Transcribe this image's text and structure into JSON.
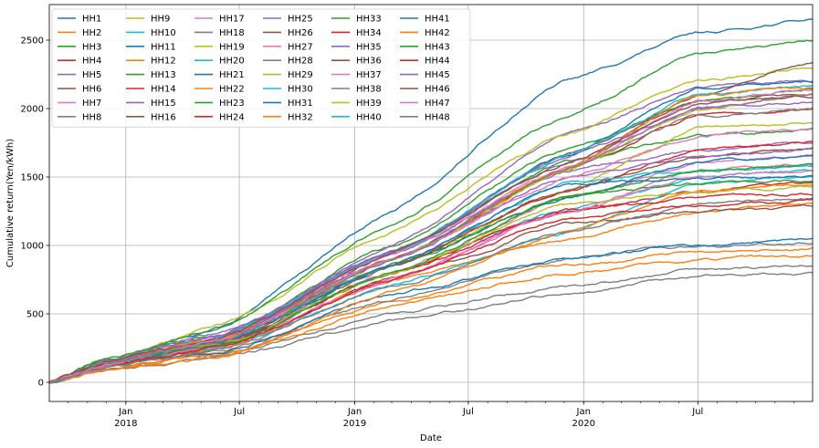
{
  "chart_data": {
    "type": "line",
    "title": "",
    "xlabel": "Date",
    "ylabel": "Cumulative return(Yen/kWh)",
    "x_range": [
      "2017-09-01",
      "2020-12-31"
    ],
    "ylim": [
      -140,
      2760
    ],
    "y_ticks": [
      0,
      500,
      1000,
      1500,
      2000,
      2500
    ],
    "x_ticks": [
      {
        "date": "2018-01-01",
        "label": "Jan",
        "sublabel": "2018"
      },
      {
        "date": "2018-07-01",
        "label": "Jul",
        "sublabel": ""
      },
      {
        "date": "2019-01-01",
        "label": "Jan",
        "sublabel": "2019"
      },
      {
        "date": "2019-07-01",
        "label": "Jul",
        "sublabel": ""
      },
      {
        "date": "2020-01-01",
        "label": "Jan",
        "sublabel": "2020"
      },
      {
        "date": "2020-07-01",
        "label": "Jul",
        "sublabel": ""
      }
    ],
    "grid": true,
    "legend_position": "top-left",
    "legend_columns": 6,
    "colors": [
      "#1f77b4",
      "#ff7f0e",
      "#2ca02c",
      "#d62728",
      "#9467bd",
      "#8c564b",
      "#e377c2",
      "#7f7f7f",
      "#bcbd22",
      "#17becf"
    ],
    "series": [
      {
        "name": "HH1",
        "values": [
          0,
          150,
          400,
          1250,
          2200,
          2550,
          2650
        ]
      },
      {
        "name": "HH2",
        "values": [
          0,
          130,
          250,
          750,
          1050,
          1250,
          1300
        ]
      },
      {
        "name": "HH3",
        "values": [
          0,
          170,
          350,
          1000,
          1700,
          2050,
          2150
        ]
      },
      {
        "name": "HH4",
        "values": [
          0,
          140,
          300,
          900,
          1550,
          1950,
          2000
        ]
      },
      {
        "name": "HH5",
        "values": [
          0,
          160,
          330,
          1000,
          1800,
          2150,
          2200
        ]
      },
      {
        "name": "HH6",
        "values": [
          0,
          150,
          310,
          950,
          1650,
          2050,
          2100
        ]
      },
      {
        "name": "HH7",
        "values": [
          0,
          120,
          260,
          800,
          1350,
          1600,
          1650
        ]
      },
      {
        "name": "HH8",
        "values": [
          0,
          100,
          200,
          500,
          700,
          820,
          850
        ]
      },
      {
        "name": "HH9",
        "values": [
          0,
          140,
          420,
          1100,
          1800,
          2200,
          2300
        ]
      },
      {
        "name": "HH10",
        "values": [
          0,
          120,
          270,
          800,
          1250,
          1500,
          1550
        ]
      },
      {
        "name": "HH11",
        "values": [
          0,
          130,
          300,
          950,
          1650,
          2150,
          2200
        ]
      },
      {
        "name": "HH12",
        "values": [
          0,
          110,
          200,
          600,
          850,
          950,
          980
        ]
      },
      {
        "name": "HH13",
        "values": [
          0,
          150,
          330,
          950,
          1600,
          1800,
          1850
        ]
      },
      {
        "name": "HH14",
        "values": [
          0,
          130,
          280,
          800,
          1250,
          1400,
          1450
        ]
      },
      {
        "name": "HH15",
        "values": [
          0,
          160,
          350,
          950,
          1550,
          1700,
          1750
        ]
      },
      {
        "name": "HH16",
        "values": [
          0,
          140,
          300,
          900,
          1550,
          2100,
          2350
        ]
      },
      {
        "name": "HH17",
        "values": [
          0,
          120,
          260,
          750,
          1250,
          1550,
          1600
        ]
      },
      {
        "name": "HH18",
        "values": [
          0,
          100,
          180,
          450,
          650,
          780,
          800
        ]
      },
      {
        "name": "HH19",
        "values": [
          0,
          130,
          290,
          850,
          1400,
          1850,
          1900
        ]
      },
      {
        "name": "HH20",
        "values": [
          0,
          120,
          250,
          700,
          1100,
          1450,
          1500
        ]
      },
      {
        "name": "HH21",
        "values": [
          0,
          130,
          300,
          850,
          1350,
          1600,
          1650
        ]
      },
      {
        "name": "HH22",
        "values": [
          0,
          100,
          200,
          550,
          800,
          900,
          920
        ]
      },
      {
        "name": "HH23",
        "values": [
          0,
          170,
          400,
          1150,
          1950,
          2400,
          2500
        ]
      },
      {
        "name": "HH24",
        "values": [
          0,
          140,
          300,
          850,
          1400,
          1700,
          1750
        ]
      },
      {
        "name": "HH25",
        "values": [
          0,
          150,
          320,
          950,
          1650,
          2000,
          2050
        ]
      },
      {
        "name": "HH26",
        "values": [
          0,
          130,
          260,
          750,
          1150,
          1250,
          1280
        ]
      },
      {
        "name": "HH27",
        "values": [
          0,
          140,
          320,
          950,
          1550,
          2050,
          2150
        ]
      },
      {
        "name": "HH28",
        "values": [
          0,
          110,
          230,
          600,
          900,
          1000,
          1020
        ]
      },
      {
        "name": "HH29",
        "values": [
          0,
          140,
          310,
          900,
          1550,
          2000,
          2100
        ]
      },
      {
        "name": "HH30",
        "values": [
          0,
          150,
          330,
          950,
          1650,
          2100,
          2150
        ]
      },
      {
        "name": "HH31",
        "values": [
          0,
          120,
          220,
          650,
          900,
          1000,
          1050
        ]
      },
      {
        "name": "HH32",
        "values": [
          0,
          100,
          180,
          650,
          1100,
          1400,
          1450
        ]
      },
      {
        "name": "HH33",
        "values": [
          0,
          140,
          300,
          850,
          1350,
          1450,
          1480
        ]
      },
      {
        "name": "HH34",
        "values": [
          0,
          130,
          280,
          800,
          1250,
          1350,
          1380
        ]
      },
      {
        "name": "HH35",
        "values": [
          0,
          150,
          330,
          950,
          1600,
          2000,
          2100
        ]
      },
      {
        "name": "HH36",
        "values": [
          0,
          130,
          270,
          850,
          1400,
          1650,
          1700
        ]
      },
      {
        "name": "HH37",
        "values": [
          0,
          120,
          260,
          750,
          1250,
          1500,
          1550
        ]
      },
      {
        "name": "HH38",
        "values": [
          0,
          110,
          230,
          700,
          1100,
          1300,
          1350
        ]
      },
      {
        "name": "HH39",
        "values": [
          0,
          130,
          280,
          800,
          1300,
          1400,
          1420
        ]
      },
      {
        "name": "HH40",
        "values": [
          0,
          140,
          300,
          850,
          1450,
          1550,
          1580
        ]
      },
      {
        "name": "HH41",
        "values": [
          0,
          130,
          290,
          850,
          1450,
          1480,
          1500
        ]
      },
      {
        "name": "HH42",
        "values": [
          0,
          140,
          320,
          900,
          1550,
          2100,
          2150
        ]
      },
      {
        "name": "HH43",
        "values": [
          0,
          120,
          270,
          800,
          1350,
          1550,
          1600
        ]
      },
      {
        "name": "HH44",
        "values": [
          0,
          120,
          250,
          750,
          1200,
          1300,
          1320
        ]
      },
      {
        "name": "HH45",
        "values": [
          0,
          150,
          320,
          900,
          1500,
          1650,
          1700
        ]
      },
      {
        "name": "HH46",
        "values": [
          0,
          150,
          320,
          950,
          1600,
          2050,
          2100
        ]
      },
      {
        "name": "HH47",
        "values": [
          0,
          140,
          310,
          900,
          1500,
          1800,
          1850
        ]
      },
      {
        "name": "HH48",
        "values": [
          0,
          140,
          310,
          900,
          1550,
          1950,
          2000
        ]
      }
    ],
    "x": [
      "2017-09-01",
      "2017-12-01",
      "2018-06-01",
      "2019-03-01",
      "2019-12-01",
      "2020-07-01",
      "2020-12-31"
    ]
  }
}
